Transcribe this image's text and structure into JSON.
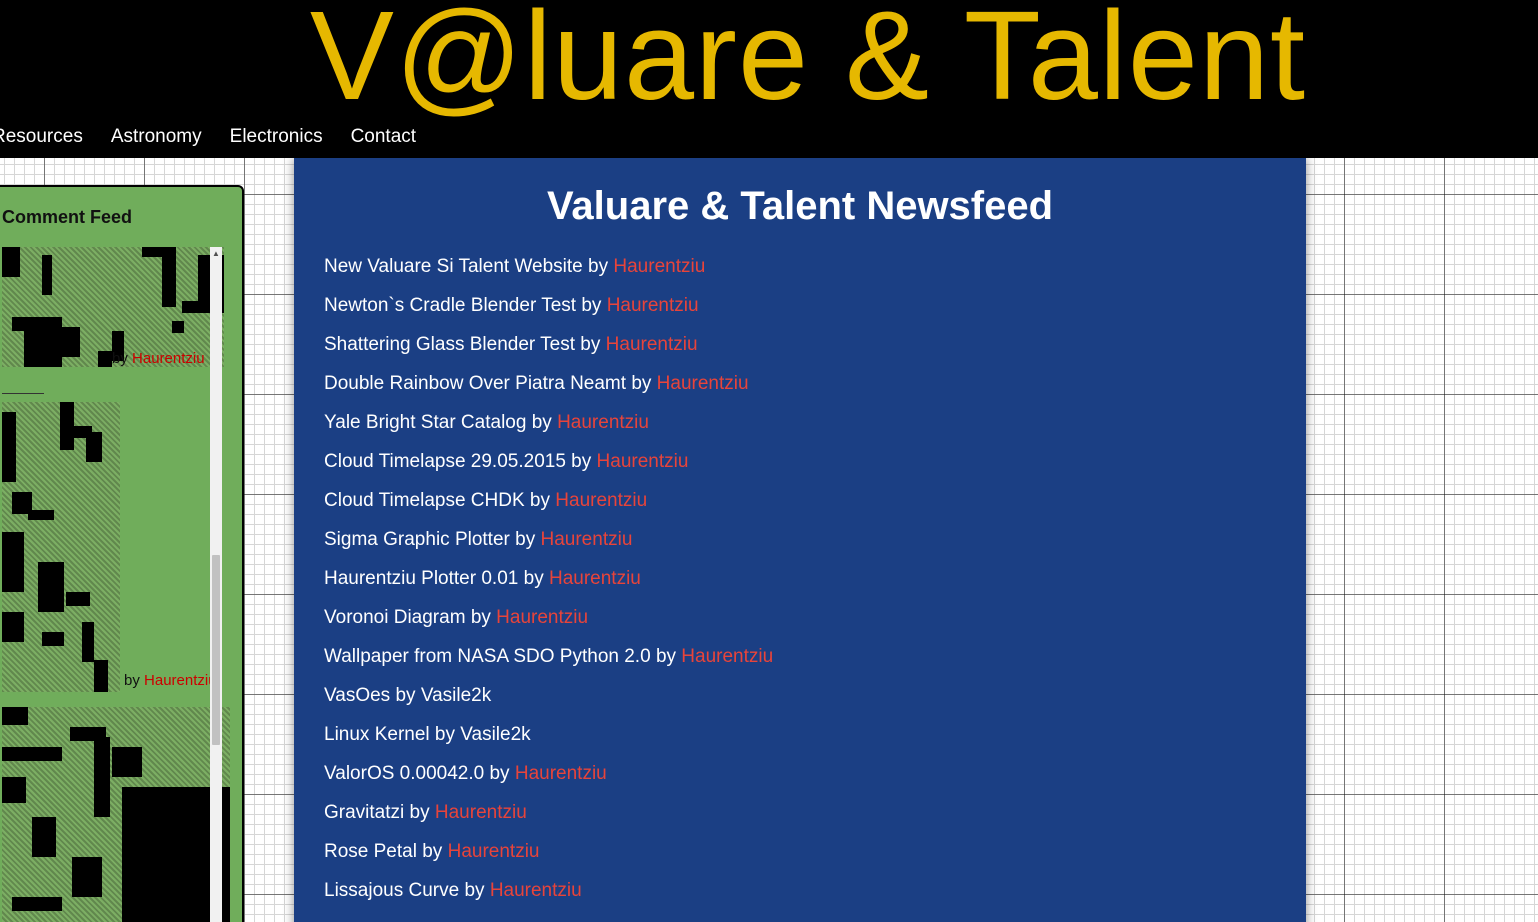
{
  "header": {
    "title": "V@luare & Talent",
    "nav": [
      "Resources",
      "Astronomy",
      "Electronics",
      "Contact"
    ]
  },
  "sidebar": {
    "title": "Comment Feed",
    "entries": [
      {
        "by": "by",
        "author": "Haurentziu"
      },
      {
        "by": "by",
        "author": "Haurentziu"
      }
    ],
    "scroll_up_glyph": "▲"
  },
  "newsfeed": {
    "title": "Valuare & Talent Newsfeed",
    "items": [
      {
        "title": "New Valuare Si Talent Website",
        "by": "by",
        "author": "Haurentziu"
      },
      {
        "title": "Newton`s Cradle Blender Test",
        "by": "by",
        "author": "Haurentziu"
      },
      {
        "title": "Shattering Glass Blender Test",
        "by": "by",
        "author": "Haurentziu"
      },
      {
        "title": "Double Rainbow Over Piatra Neamt",
        "by": "by",
        "author": "Haurentziu"
      },
      {
        "title": "Yale Bright Star Catalog",
        "by": "by",
        "author": "Haurentziu"
      },
      {
        "title": "Cloud Timelapse 29.05.2015",
        "by": "by",
        "author": "Haurentziu"
      },
      {
        "title": "Cloud Timelapse CHDK",
        "by": "by",
        "author": "Haurentziu"
      },
      {
        "title": "Sigma Graphic Plotter",
        "by": "by",
        "author": "Haurentziu"
      },
      {
        "title": "Haurentziu Plotter 0.01",
        "by": "by",
        "author": "Haurentziu"
      },
      {
        "title": "Voronoi Diagram",
        "by": "by",
        "author": "Haurentziu"
      },
      {
        "title": "Wallpaper from NASA SDO Python 2.0",
        "by": "by",
        "author": "Haurentziu"
      },
      {
        "title": "VasOes",
        "by": "by Vasile2k",
        "author": ""
      },
      {
        "title": "Linux Kernel",
        "by": "by Vasile2k",
        "author": ""
      },
      {
        "title": "ValorOS 0.00042.0",
        "by": "by",
        "author": "Haurentziu"
      },
      {
        "title": "Gravitatzi",
        "by": "by",
        "author": "Haurentziu"
      },
      {
        "title": "Rose Petal",
        "by": "by",
        "author": "Haurentziu"
      },
      {
        "title": "Lissajous Curve",
        "by": "by",
        "author": "Haurentziu"
      }
    ]
  },
  "colors": {
    "title_gold": "#e6b800",
    "header_bg": "#000000",
    "newsfeed_bg": "#1b3f84",
    "sidebar_bg": "#70ad5b",
    "author_link": "#e8443a"
  }
}
